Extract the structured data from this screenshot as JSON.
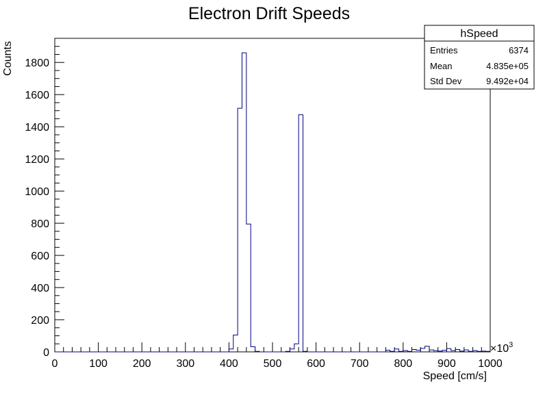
{
  "chart_data": {
    "type": "bar",
    "title": "Electron Drift Speeds",
    "xlabel": "Speed [cm/s]",
    "ylabel": "Counts",
    "x_exponent_label": "×10",
    "x_exponent_power": "3",
    "xlim": [
      0,
      1000
    ],
    "ylim": [
      0,
      1950
    ],
    "x_ticks": [
      0,
      100,
      200,
      300,
      400,
      500,
      600,
      700,
      800,
      900,
      1000
    ],
    "y_ticks": [
      0,
      200,
      400,
      600,
      800,
      1000,
      1200,
      1400,
      1600,
      1800
    ],
    "bin_width": 10,
    "bins": [
      {
        "x0": 400,
        "value": 18
      },
      {
        "x0": 410,
        "value": 105
      },
      {
        "x0": 420,
        "value": 1515
      },
      {
        "x0": 430,
        "value": 1860
      },
      {
        "x0": 440,
        "value": 795
      },
      {
        "x0": 450,
        "value": 32
      },
      {
        "x0": 460,
        "value": 3
      },
      {
        "x0": 530,
        "value": 3
      },
      {
        "x0": 540,
        "value": 18
      },
      {
        "x0": 550,
        "value": 50
      },
      {
        "x0": 560,
        "value": 1475
      },
      {
        "x0": 570,
        "value": 3
      },
      {
        "x0": 760,
        "value": 10
      },
      {
        "x0": 770,
        "value": 3
      },
      {
        "x0": 780,
        "value": 18
      },
      {
        "x0": 790,
        "value": 3
      },
      {
        "x0": 800,
        "value": 8
      },
      {
        "x0": 810,
        "value": 3
      },
      {
        "x0": 820,
        "value": 15
      },
      {
        "x0": 830,
        "value": 10
      },
      {
        "x0": 840,
        "value": 22
      },
      {
        "x0": 850,
        "value": 35
      },
      {
        "x0": 860,
        "value": 12
      },
      {
        "x0": 870,
        "value": 8
      },
      {
        "x0": 880,
        "value": 5
      },
      {
        "x0": 890,
        "value": 10
      },
      {
        "x0": 900,
        "value": 20
      },
      {
        "x0": 910,
        "value": 8
      },
      {
        "x0": 920,
        "value": 15
      },
      {
        "x0": 930,
        "value": 5
      },
      {
        "x0": 940,
        "value": 12
      },
      {
        "x0": 950,
        "value": 3
      },
      {
        "x0": 960,
        "value": 8
      },
      {
        "x0": 970,
        "value": 3
      },
      {
        "x0": 980,
        "value": 5
      },
      {
        "x0": 990,
        "value": 3
      }
    ],
    "line_color": "#000080",
    "stats": {
      "name": "hSpeed",
      "rows": [
        {
          "label": "Entries",
          "value": "6374"
        },
        {
          "label": "Mean",
          "value": "4.835e+05"
        },
        {
          "label": "Std Dev",
          "value": "9.492e+04"
        }
      ]
    }
  }
}
